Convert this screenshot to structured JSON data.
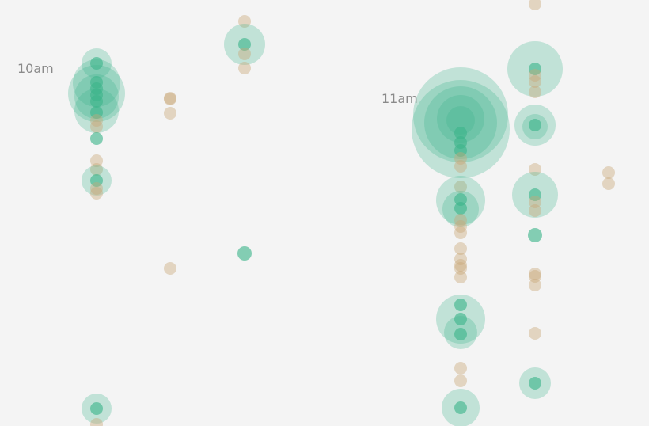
{
  "chart_data": {
    "type": "scatter",
    "encoding": "bubble",
    "colors": {
      "event": "#3db48b",
      "secondary": "#c9a877",
      "background": "#f4f4f4",
      "label": "#8a8a8a"
    },
    "time_labels": [
      "10am",
      "11am"
    ],
    "bubbles": [
      {
        "col": 0,
        "row": 80,
        "r": 19,
        "kind": "event"
      },
      {
        "col": 0,
        "row": 105,
        "r": 30,
        "kind": "event"
      },
      {
        "col": 0,
        "row": 118,
        "r": 36,
        "kind": "event"
      },
      {
        "col": 0,
        "row": 122,
        "r": 28,
        "kind": "event"
      },
      {
        "col": 0,
        "row": 140,
        "r": 28,
        "kind": "event"
      },
      {
        "col": 0,
        "row": 80,
        "r": 8,
        "kind": "event"
      },
      {
        "col": 0,
        "row": 104,
        "r": 8,
        "kind": "event"
      },
      {
        "col": 0,
        "row": 112,
        "r": 8,
        "kind": "event"
      },
      {
        "col": 0,
        "row": 120,
        "r": 8,
        "kind": "event"
      },
      {
        "col": 0,
        "row": 128,
        "r": 8,
        "kind": "event"
      },
      {
        "col": 0,
        "row": 142,
        "r": 8,
        "kind": "event"
      },
      {
        "col": 0,
        "row": 152,
        "r": 8,
        "kind": "secondary"
      },
      {
        "col": 0,
        "row": 160,
        "r": 8,
        "kind": "secondary"
      },
      {
        "col": 0,
        "row": 175,
        "r": 8,
        "kind": "event"
      },
      {
        "col": 0,
        "row": 203,
        "r": 8,
        "kind": "secondary"
      },
      {
        "col": 0,
        "row": 214,
        "r": 8,
        "kind": "secondary"
      },
      {
        "col": 0,
        "row": 228,
        "r": 19,
        "kind": "event"
      },
      {
        "col": 0,
        "row": 228,
        "r": 8,
        "kind": "event"
      },
      {
        "col": 0,
        "row": 238,
        "r": 8,
        "kind": "secondary"
      },
      {
        "col": 0,
        "row": 244,
        "r": 8,
        "kind": "secondary"
      },
      {
        "col": 0,
        "row": 516,
        "r": 19,
        "kind": "event"
      },
      {
        "col": 0,
        "row": 516,
        "r": 8,
        "kind": "event"
      },
      {
        "col": 0,
        "row": 536,
        "r": 8,
        "kind": "secondary"
      },
      {
        "col": 1,
        "row": 124,
        "r": 8,
        "kind": "secondary"
      },
      {
        "col": 1,
        "row": 125,
        "r": 8,
        "kind": "secondary"
      },
      {
        "col": 1,
        "row": 143,
        "r": 8,
        "kind": "secondary"
      },
      {
        "col": 1,
        "row": 339,
        "r": 8,
        "kind": "secondary"
      },
      {
        "col": 2,
        "row": 27,
        "r": 8,
        "kind": "secondary"
      },
      {
        "col": 2,
        "row": 56,
        "r": 26,
        "kind": "event"
      },
      {
        "col": 2,
        "row": 56,
        "r": 8,
        "kind": "event"
      },
      {
        "col": 2,
        "row": 68,
        "r": 8,
        "kind": "secondary"
      },
      {
        "col": 2,
        "row": 86,
        "r": 8,
        "kind": "secondary"
      },
      {
        "col": 2,
        "row": 320,
        "r": 9,
        "kind": "event"
      },
      {
        "col": 3,
        "row": 145,
        "r": 60,
        "kind": "event"
      },
      {
        "col": 3,
        "row": 163,
        "r": 62,
        "kind": "event"
      },
      {
        "col": 3,
        "row": 155,
        "r": 46,
        "kind": "event"
      },
      {
        "col": 3,
        "row": 150,
        "r": 30,
        "kind": "event"
      },
      {
        "col": 3,
        "row": 152,
        "r": 18,
        "kind": "event"
      },
      {
        "col": 3,
        "row": 168,
        "r": 8,
        "kind": "event"
      },
      {
        "col": 3,
        "row": 180,
        "r": 8,
        "kind": "event"
      },
      {
        "col": 3,
        "row": 190,
        "r": 8,
        "kind": "event"
      },
      {
        "col": 3,
        "row": 200,
        "r": 8,
        "kind": "secondary"
      },
      {
        "col": 3,
        "row": 210,
        "r": 8,
        "kind": "secondary"
      },
      {
        "col": 3,
        "row": 236,
        "r": 8,
        "kind": "secondary"
      },
      {
        "col": 3,
        "row": 253,
        "r": 31,
        "kind": "event"
      },
      {
        "col": 3,
        "row": 264,
        "r": 23,
        "kind": "event"
      },
      {
        "col": 3,
        "row": 252,
        "r": 8,
        "kind": "event"
      },
      {
        "col": 3,
        "row": 263,
        "r": 8,
        "kind": "event"
      },
      {
        "col": 3,
        "row": 278,
        "r": 8,
        "kind": "secondary"
      },
      {
        "col": 3,
        "row": 286,
        "r": 8,
        "kind": "secondary"
      },
      {
        "col": 3,
        "row": 294,
        "r": 8,
        "kind": "secondary"
      },
      {
        "col": 3,
        "row": 314,
        "r": 8,
        "kind": "secondary"
      },
      {
        "col": 3,
        "row": 327,
        "r": 8,
        "kind": "secondary"
      },
      {
        "col": 3,
        "row": 335,
        "r": 8,
        "kind": "secondary"
      },
      {
        "col": 3,
        "row": 339,
        "r": 8,
        "kind": "secondary"
      },
      {
        "col": 3,
        "row": 350,
        "r": 8,
        "kind": "secondary"
      },
      {
        "col": 3,
        "row": 403,
        "r": 31,
        "kind": "event"
      },
      {
        "col": 3,
        "row": 420,
        "r": 21,
        "kind": "event"
      },
      {
        "col": 3,
        "row": 385,
        "r": 8,
        "kind": "event"
      },
      {
        "col": 3,
        "row": 403,
        "r": 8,
        "kind": "event"
      },
      {
        "col": 3,
        "row": 422,
        "r": 8,
        "kind": "event"
      },
      {
        "col": 3,
        "row": 465,
        "r": 8,
        "kind": "secondary"
      },
      {
        "col": 3,
        "row": 481,
        "r": 8,
        "kind": "secondary"
      },
      {
        "col": 3,
        "row": 515,
        "r": 24,
        "kind": "event"
      },
      {
        "col": 3,
        "row": 515,
        "r": 8,
        "kind": "event"
      },
      {
        "col": 4,
        "row": 5,
        "r": 8,
        "kind": "secondary"
      },
      {
        "col": 4,
        "row": 87,
        "r": 35,
        "kind": "event"
      },
      {
        "col": 4,
        "row": 87,
        "r": 8,
        "kind": "event"
      },
      {
        "col": 4,
        "row": 95,
        "r": 8,
        "kind": "secondary"
      },
      {
        "col": 4,
        "row": 103,
        "r": 8,
        "kind": "secondary"
      },
      {
        "col": 4,
        "row": 116,
        "r": 8,
        "kind": "secondary"
      },
      {
        "col": 4,
        "row": 158,
        "r": 26,
        "kind": "event"
      },
      {
        "col": 4,
        "row": 160,
        "r": 16,
        "kind": "event"
      },
      {
        "col": 4,
        "row": 158,
        "r": 8,
        "kind": "event"
      },
      {
        "col": 4,
        "row": 214,
        "r": 8,
        "kind": "secondary"
      },
      {
        "col": 4,
        "row": 246,
        "r": 29,
        "kind": "event"
      },
      {
        "col": 4,
        "row": 246,
        "r": 8,
        "kind": "event"
      },
      {
        "col": 4,
        "row": 255,
        "r": 8,
        "kind": "secondary"
      },
      {
        "col": 4,
        "row": 266,
        "r": 8,
        "kind": "secondary"
      },
      {
        "col": 4,
        "row": 297,
        "r": 9,
        "kind": "event"
      },
      {
        "col": 4,
        "row": 346,
        "r": 8,
        "kind": "secondary"
      },
      {
        "col": 4,
        "row": 349,
        "r": 8,
        "kind": "secondary"
      },
      {
        "col": 4,
        "row": 360,
        "r": 8,
        "kind": "secondary"
      },
      {
        "col": 4,
        "row": 421,
        "r": 8,
        "kind": "secondary"
      },
      {
        "col": 4,
        "row": 484,
        "r": 20,
        "kind": "event"
      },
      {
        "col": 4,
        "row": 484,
        "r": 8,
        "kind": "event"
      },
      {
        "col": 5,
        "row": 218,
        "r": 8,
        "kind": "secondary"
      },
      {
        "col": 5,
        "row": 232,
        "r": 8,
        "kind": "secondary"
      }
    ]
  }
}
